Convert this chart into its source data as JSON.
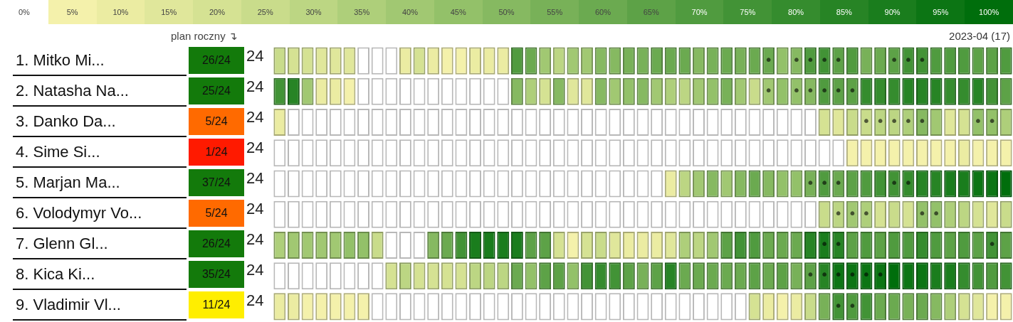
{
  "chart_data": [
    {
      "type": "heatmap",
      "annotations": [
        "2023-04 (17)"
      ],
      "tick_labels": "y",
      "grid": false,
      "categories": [
        null,
        null,
        null,
        null,
        null,
        null,
        null,
        null,
        null,
        null,
        null,
        null,
        null,
        null,
        null,
        null,
        null,
        null,
        null,
        null,
        null,
        null,
        null,
        null,
        null,
        null,
        null,
        null,
        null,
        null,
        null,
        null,
        null,
        null,
        null,
        null,
        null,
        null,
        null,
        null,
        null,
        null,
        null,
        null,
        null,
        null,
        null,
        null,
        null,
        null,
        null,
        null,
        null
      ],
      "y_categories": [
        "1. Mitko Mi...",
        "2. Natasha Na...",
        "3. Danko Da...",
        "4. Sime Si...",
        "5. Marjan Ma...",
        "6. Volodymyr Vo...",
        "7. Glenn Gl...",
        "8. Kica Ki...",
        "9. Vladimir Vl..."
      ],
      "clim": [
        0,
        100
      ],
      "cticks": [
        {
          "value": 0,
          "label": "0%"
        },
        {
          "value": 5,
          "label": "5%"
        },
        {
          "value": 10,
          "label": "10%"
        },
        {
          "value": 15,
          "label": "15%"
        },
        {
          "value": 20,
          "label": "20%"
        },
        {
          "value": 25,
          "label": "25%"
        },
        {
          "value": 30,
          "label": "30%"
        },
        {
          "value": 35,
          "label": "35%"
        },
        {
          "value": 40,
          "label": "40%"
        },
        {
          "value": 45,
          "label": "45%"
        },
        {
          "value": 50,
          "label": "50%"
        },
        {
          "value": 55,
          "label": "55%"
        },
        {
          "value": 60,
          "label": "60%"
        },
        {
          "value": 65,
          "label": "65%"
        },
        {
          "value": 70,
          "label": "70%"
        },
        {
          "value": 75,
          "label": "75%"
        },
        {
          "value": 80,
          "label": "80%"
        },
        {
          "value": 85,
          "label": "85%"
        },
        {
          "value": 90,
          "label": "90%"
        },
        {
          "value": 95,
          "label": "95%"
        },
        {
          "value": 100,
          "label": "100%"
        }
      ],
      "cells": [
        [
          25,
          20,
          20,
          15,
          15,
          15,
          0,
          0,
          0,
          10,
          20,
          10,
          5,
          5,
          10,
          10,
          10,
          70,
          60,
          40,
          30,
          40,
          40,
          50,
          50,
          55,
          55,
          60,
          60,
          60,
          50,
          55,
          60,
          55,
          60,
          60,
          45,
          50,
          70,
          75,
          65,
          70,
          55,
          60,
          65,
          75,
          75,
          70,
          70,
          70,
          65,
          65,
          70
        ],
        [
          75,
          85,
          40,
          10,
          10,
          5,
          0,
          0,
          0,
          0,
          0,
          0,
          0,
          0,
          0,
          0,
          0,
          50,
          35,
          20,
          50,
          15,
          15,
          50,
          40,
          45,
          50,
          40,
          35,
          30,
          40,
          45,
          55,
          40,
          25,
          40,
          45,
          45,
          50,
          70,
          65,
          65,
          80,
          80,
          80,
          85,
          85,
          85,
          80,
          80,
          85,
          75,
          65
        ],
        [
          10,
          0,
          0,
          0,
          0,
          0,
          0,
          0,
          0,
          0,
          0,
          0,
          0,
          0,
          0,
          0,
          0,
          0,
          0,
          0,
          0,
          0,
          0,
          0,
          0,
          0,
          0,
          0,
          0,
          0,
          0,
          0,
          0,
          0,
          0,
          0,
          0,
          0,
          0,
          20,
          15,
          25,
          25,
          30,
          30,
          35,
          50,
          40,
          15,
          20,
          45,
          45,
          35
        ],
        [
          0,
          0,
          0,
          0,
          0,
          0,
          0,
          0,
          0,
          0,
          0,
          0,
          0,
          0,
          0,
          0,
          0,
          0,
          0,
          0,
          0,
          0,
          0,
          0,
          0,
          0,
          0,
          0,
          0,
          0,
          0,
          0,
          0,
          0,
          0,
          0,
          0,
          0,
          0,
          0,
          0,
          5,
          5,
          5,
          5,
          5,
          5,
          5,
          5,
          10,
          5,
          5,
          5
        ],
        [
          0,
          0,
          0,
          0,
          0,
          0,
          0,
          0,
          0,
          0,
          0,
          0,
          0,
          0,
          0,
          0,
          0,
          0,
          0,
          0,
          0,
          0,
          0,
          0,
          0,
          0,
          0,
          0,
          10,
          30,
          40,
          50,
          40,
          50,
          60,
          50,
          45,
          45,
          55,
          70,
          60,
          65,
          70,
          75,
          75,
          80,
          85,
          85,
          90,
          90,
          95,
          95,
          100
        ],
        [
          0,
          0,
          0,
          0,
          0,
          0,
          0,
          0,
          0,
          0,
          0,
          0,
          0,
          0,
          0,
          0,
          0,
          0,
          0,
          0,
          0,
          0,
          0,
          0,
          0,
          0,
          0,
          0,
          0,
          0,
          0,
          0,
          0,
          0,
          0,
          0,
          0,
          0,
          0,
          25,
          30,
          40,
          35,
          20,
          25,
          20,
          45,
          45,
          35,
          30,
          20,
          15,
          25
        ],
        [
          35,
          40,
          40,
          40,
          40,
          45,
          45,
          25,
          0,
          0,
          0,
          50,
          60,
          75,
          90,
          90,
          90,
          90,
          65,
          65,
          20,
          5,
          20,
          25,
          15,
          10,
          10,
          10,
          15,
          35,
          30,
          40,
          65,
          75,
          70,
          60,
          60,
          60,
          85,
          90,
          85,
          65,
          70,
          65,
          70,
          70,
          80,
          70,
          65,
          70,
          65,
          75,
          65
        ],
        [
          0,
          0,
          0,
          0,
          0,
          0,
          0,
          0,
          20,
          30,
          20,
          20,
          20,
          20,
          30,
          30,
          30,
          60,
          45,
          65,
          65,
          45,
          75,
          80,
          75,
          65,
          55,
          65,
          85,
          60,
          60,
          60,
          60,
          60,
          65,
          60,
          65,
          55,
          65,
          85,
          95,
          95,
          95,
          95,
          100,
          95,
          95,
          90,
          90,
          80,
          75,
          70,
          75
        ],
        [
          10,
          10,
          5,
          5,
          5,
          5,
          5,
          0,
          0,
          0,
          0,
          0,
          0,
          0,
          0,
          0,
          0,
          0,
          0,
          0,
          0,
          0,
          0,
          0,
          0,
          0,
          0,
          0,
          0,
          0,
          0,
          0,
          0,
          0,
          20,
          10,
          5,
          10,
          25,
          55,
          75,
          70,
          75,
          60,
          60,
          55,
          60,
          50,
          35,
          20,
          15,
          5,
          5
        ]
      ],
      "cell_labels": [
        [
          null,
          null,
          null,
          null,
          null,
          null,
          null,
          null,
          null,
          null,
          null,
          null,
          null,
          null,
          null,
          null,
          null,
          null,
          null,
          null,
          null,
          null,
          null,
          null,
          null,
          null,
          null,
          null,
          null,
          null,
          null,
          null,
          null,
          null,
          null,
          "•",
          null,
          "•",
          "•",
          "•",
          "•",
          null,
          null,
          null,
          "•",
          "•",
          "•",
          null,
          null,
          null,
          null,
          null,
          null
        ],
        [
          null,
          null,
          null,
          null,
          null,
          null,
          null,
          null,
          null,
          null,
          null,
          null,
          null,
          null,
          null,
          null,
          null,
          null,
          null,
          null,
          null,
          null,
          null,
          null,
          null,
          null,
          null,
          null,
          null,
          null,
          null,
          null,
          null,
          null,
          null,
          "•",
          null,
          "•",
          "•",
          "•",
          "•",
          "•",
          null,
          null,
          null,
          null,
          null,
          null,
          null,
          null,
          null,
          null,
          null
        ],
        [
          null,
          null,
          null,
          null,
          null,
          null,
          null,
          null,
          null,
          null,
          null,
          null,
          null,
          null,
          null,
          null,
          null,
          null,
          null,
          null,
          null,
          null,
          null,
          null,
          null,
          null,
          null,
          null,
          null,
          null,
          null,
          null,
          null,
          null,
          null,
          null,
          null,
          null,
          null,
          null,
          null,
          null,
          "•",
          "•",
          "•",
          "•",
          "•",
          null,
          null,
          null,
          "•",
          "•",
          null
        ],
        [
          null,
          null,
          null,
          null,
          null,
          null,
          null,
          null,
          null,
          null,
          null,
          null,
          null,
          null,
          null,
          null,
          null,
          null,
          null,
          null,
          null,
          null,
          null,
          null,
          null,
          null,
          null,
          null,
          null,
          null,
          null,
          null,
          null,
          null,
          null,
          null,
          null,
          null,
          null,
          null,
          null,
          null,
          null,
          null,
          null,
          null,
          null,
          null,
          null,
          null,
          null,
          null,
          null
        ],
        [
          null,
          null,
          null,
          null,
          null,
          null,
          null,
          null,
          null,
          null,
          null,
          null,
          null,
          null,
          null,
          null,
          null,
          null,
          null,
          null,
          null,
          null,
          null,
          null,
          null,
          null,
          null,
          null,
          null,
          null,
          null,
          null,
          null,
          null,
          null,
          null,
          null,
          null,
          "•",
          "•",
          "•",
          null,
          null,
          null,
          "•",
          "•",
          null,
          null,
          null,
          null,
          null,
          null,
          null
        ],
        [
          null,
          null,
          null,
          null,
          null,
          null,
          null,
          null,
          null,
          null,
          null,
          null,
          null,
          null,
          null,
          null,
          null,
          null,
          null,
          null,
          null,
          null,
          null,
          null,
          null,
          null,
          null,
          null,
          null,
          null,
          null,
          null,
          null,
          null,
          null,
          null,
          null,
          null,
          null,
          null,
          "•",
          "•",
          "•",
          null,
          null,
          null,
          "•",
          "•",
          null,
          null,
          null,
          null,
          null
        ],
        [
          null,
          null,
          null,
          null,
          null,
          null,
          null,
          null,
          null,
          null,
          null,
          null,
          null,
          null,
          null,
          null,
          null,
          null,
          null,
          null,
          null,
          null,
          null,
          null,
          null,
          null,
          null,
          null,
          null,
          null,
          null,
          null,
          null,
          null,
          null,
          null,
          null,
          null,
          null,
          "•",
          "•",
          null,
          null,
          null,
          null,
          null,
          null,
          null,
          null,
          null,
          null,
          "•",
          null
        ],
        [
          null,
          null,
          null,
          null,
          null,
          null,
          null,
          null,
          null,
          null,
          null,
          null,
          null,
          null,
          null,
          null,
          null,
          null,
          null,
          null,
          null,
          null,
          null,
          null,
          null,
          null,
          null,
          null,
          null,
          null,
          null,
          null,
          null,
          null,
          null,
          null,
          null,
          null,
          "•",
          "•",
          "•",
          "•",
          "•",
          "•",
          null,
          null,
          null,
          null,
          null,
          null,
          null,
          null,
          null
        ],
        [
          null,
          null,
          null,
          null,
          null,
          null,
          null,
          null,
          null,
          null,
          null,
          null,
          null,
          null,
          null,
          null,
          null,
          null,
          null,
          null,
          null,
          null,
          null,
          null,
          null,
          null,
          null,
          null,
          null,
          null,
          null,
          null,
          null,
          null,
          null,
          null,
          null,
          null,
          null,
          null,
          "•",
          "•",
          null,
          null,
          null,
          null,
          null,
          null,
          null,
          null,
          null,
          null,
          null
        ]
      ]
    },
    {
      "type": "other",
      "title": "plan roczny ↴",
      "annotations": [
        "26/24",
        "24",
        "25/24",
        "24",
        "5/24",
        "24",
        "1/24",
        "24",
        "37/24",
        "24",
        "5/24",
        "24",
        "26/24",
        "24",
        "35/24",
        "24",
        "11/24",
        "24"
      ],
      "colors": [
        "#137a0b",
        "#137a0b",
        "#ff6a00",
        "#ff1a00",
        "#137a0b",
        "#ff6a00",
        "#137a0b",
        "#137a0b",
        "#ffee00"
      ]
    }
  ]
}
